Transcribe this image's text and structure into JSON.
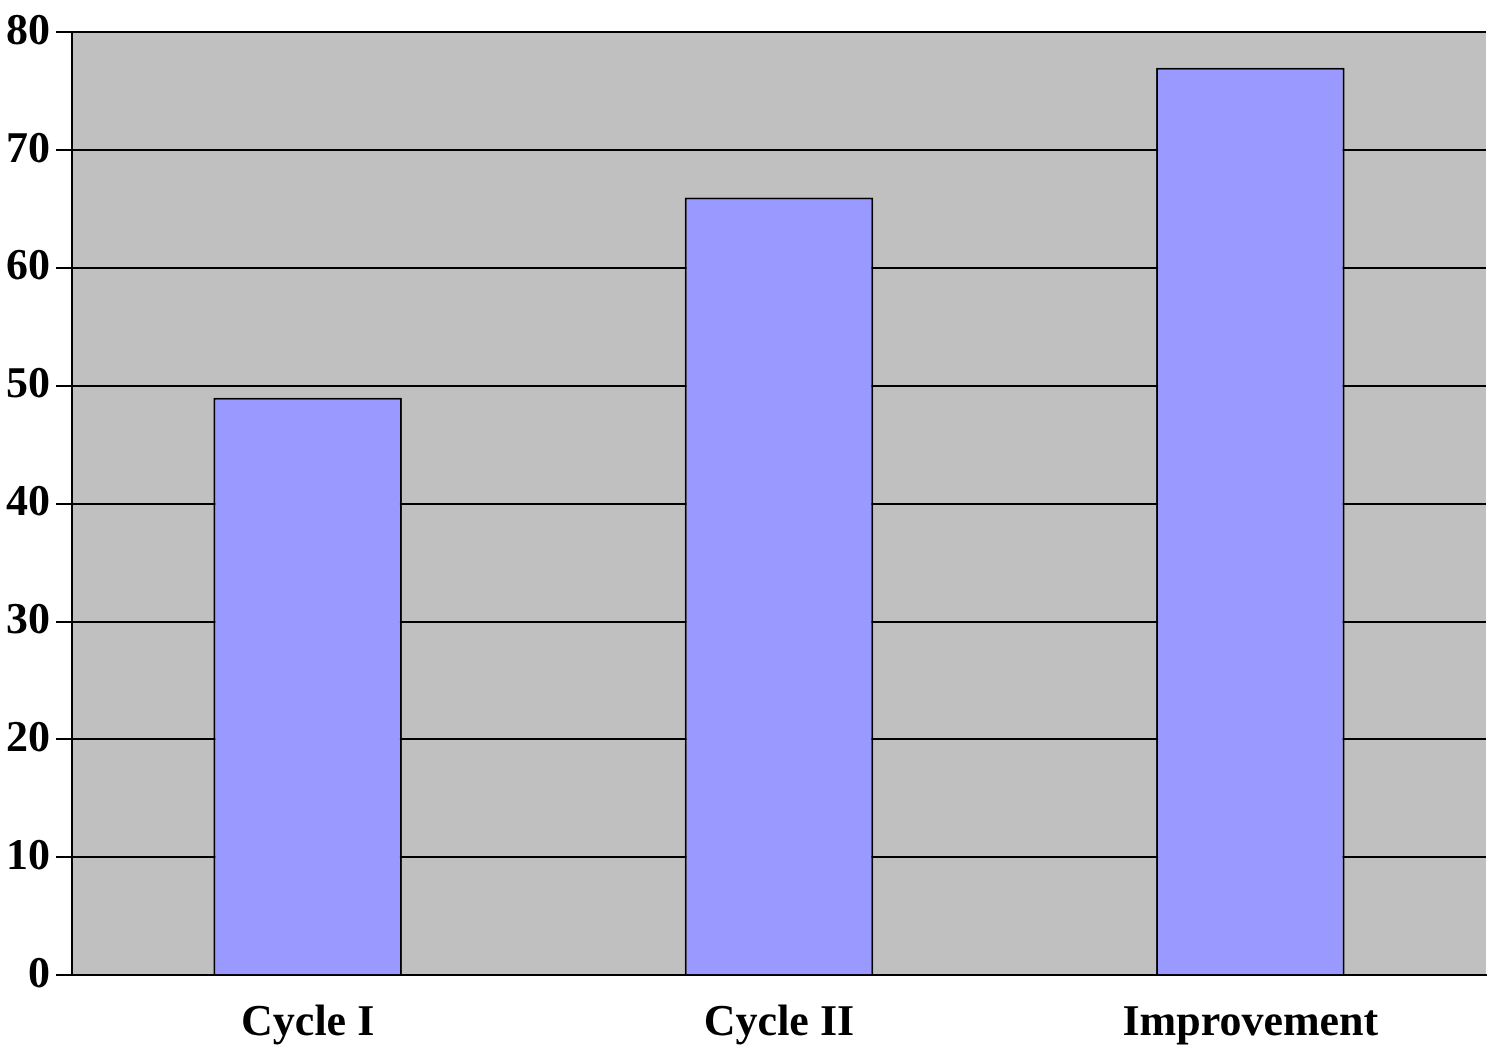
{
  "chart_data": {
    "type": "bar",
    "categories": [
      "Cycle I",
      "Cycle II",
      "Improvement"
    ],
    "values": [
      49,
      66,
      77
    ],
    "color": "#9999ff",
    "ylim": [
      0,
      80
    ],
    "yticks": [
      0,
      10,
      20,
      30,
      40,
      50,
      60,
      70,
      80
    ],
    "grid": "y",
    "legend": false
  }
}
